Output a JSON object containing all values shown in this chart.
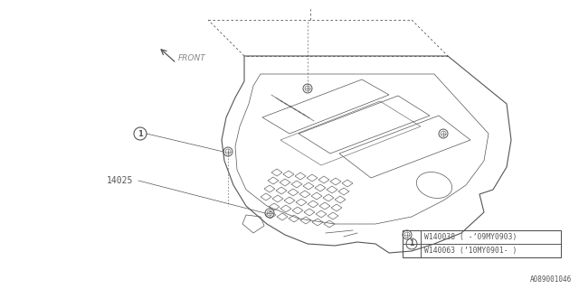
{
  "bg_color": "#ffffff",
  "line_color": "#555555",
  "figure_id": "A089001046",
  "part_number_label": "14025",
  "part_rows": [
    "W140038 ( -’09MY0903)",
    "W140063 (’10MY0901- )"
  ],
  "front_label": "FRONT",
  "figsize": [
    6.4,
    3.2
  ],
  "dpi": 100,
  "lw_main": 0.8,
  "lw_thin": 0.5,
  "lw_dash": 0.6
}
